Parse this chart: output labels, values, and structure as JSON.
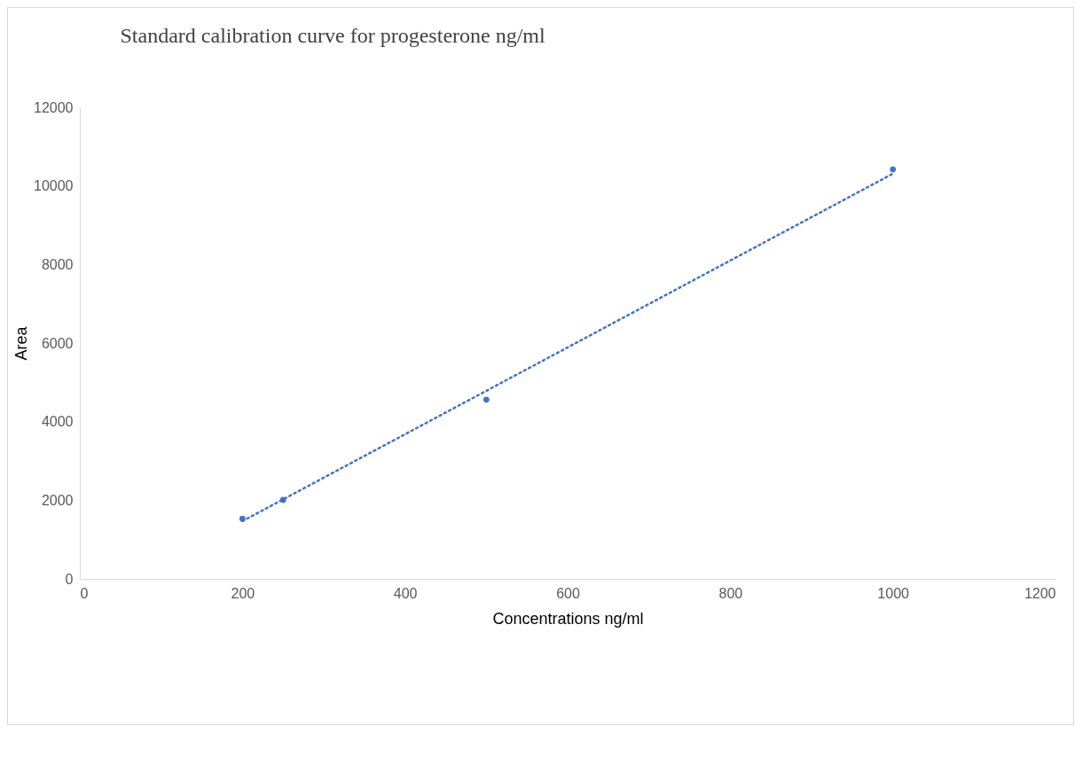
{
  "chart_data": {
    "type": "scatter",
    "title": "Standard calibration curve for progesterone ng/ml",
    "xlabel": "Concentrations ng/ml",
    "ylabel": "Area",
    "xlim": [
      0,
      1200
    ],
    "xticks": [
      0,
      200,
      400,
      600,
      800,
      1000,
      1200
    ],
    "ylim": [
      0,
      12000
    ],
    "yticks": [
      0,
      2000,
      4000,
      6000,
      8000,
      10000,
      12000
    ],
    "grid": false,
    "marker": "circle",
    "series": [
      {
        "color": "#4472c4",
        "x": [
          200,
          250,
          500,
          1000
        ],
        "values": [
          1530,
          2010,
          4560,
          10420
        ]
      },
      {
        "type": "line",
        "color": "#4472c4",
        "line_style": "dotted",
        "marker": "none",
        "x": [
          200,
          1000
        ],
        "values": [
          1470,
          10310
        ]
      }
    ]
  }
}
